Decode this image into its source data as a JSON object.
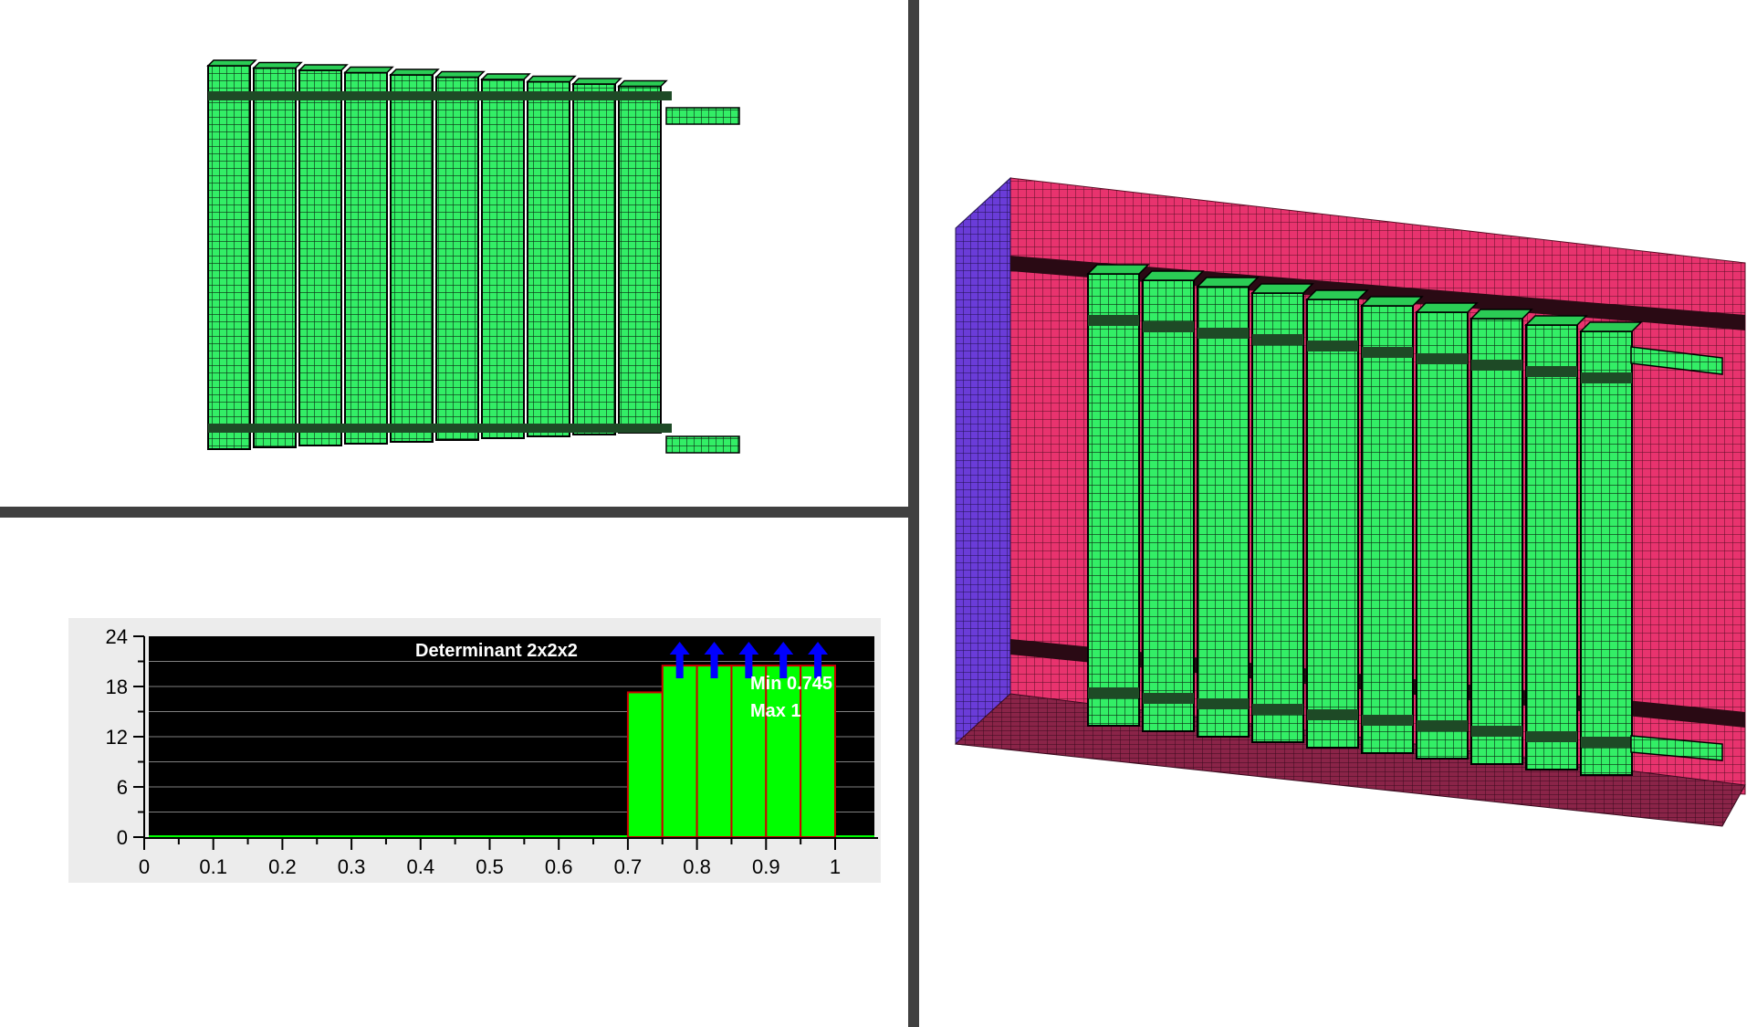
{
  "viewports": {
    "model_top": {
      "fin_count": 10,
      "fin_color": "#33ee66"
    },
    "model_3d": {
      "fin_count": 10,
      "fin_color": "#33ee66",
      "enclosure_color": "#e8336e",
      "side_color": "#6a3cd8",
      "floor_color": "#8a2448"
    }
  },
  "histogram": {
    "colors": {
      "background": "#000000",
      "bar_fill": "#00ff00",
      "bar_edge": "#cc0000",
      "arrow": "#0000ff",
      "panel": "#ececec"
    },
    "stats": {
      "min_label": "Min 0.745",
      "max_label": "Max 1"
    }
  },
  "chart_data": {
    "type": "bar",
    "title": "Determinant 2x2x2",
    "xlabel": "",
    "ylabel": "",
    "xlim": [
      0,
      1
    ],
    "ylim": [
      0,
      24
    ],
    "x_ticks": [
      "0",
      "0.1",
      "0.2",
      "0.3",
      "0.4",
      "0.5",
      "0.6",
      "0.7",
      "0.8",
      "0.9",
      "1"
    ],
    "y_ticks": [
      "0",
      "6",
      "12",
      "18",
      "24"
    ],
    "bins": [
      {
        "start": 0.7,
        "end": 0.75,
        "value": 17.3,
        "overflow": false
      },
      {
        "start": 0.75,
        "end": 0.8,
        "value": 20.5,
        "overflow": true
      },
      {
        "start": 0.8,
        "end": 0.85,
        "value": 20.5,
        "overflow": true
      },
      {
        "start": 0.85,
        "end": 0.9,
        "value": 20.5,
        "overflow": true
      },
      {
        "start": 0.9,
        "end": 0.95,
        "value": 20.5,
        "overflow": true
      },
      {
        "start": 0.95,
        "end": 1.0,
        "value": 20.5,
        "overflow": true
      }
    ],
    "grid": true
  }
}
